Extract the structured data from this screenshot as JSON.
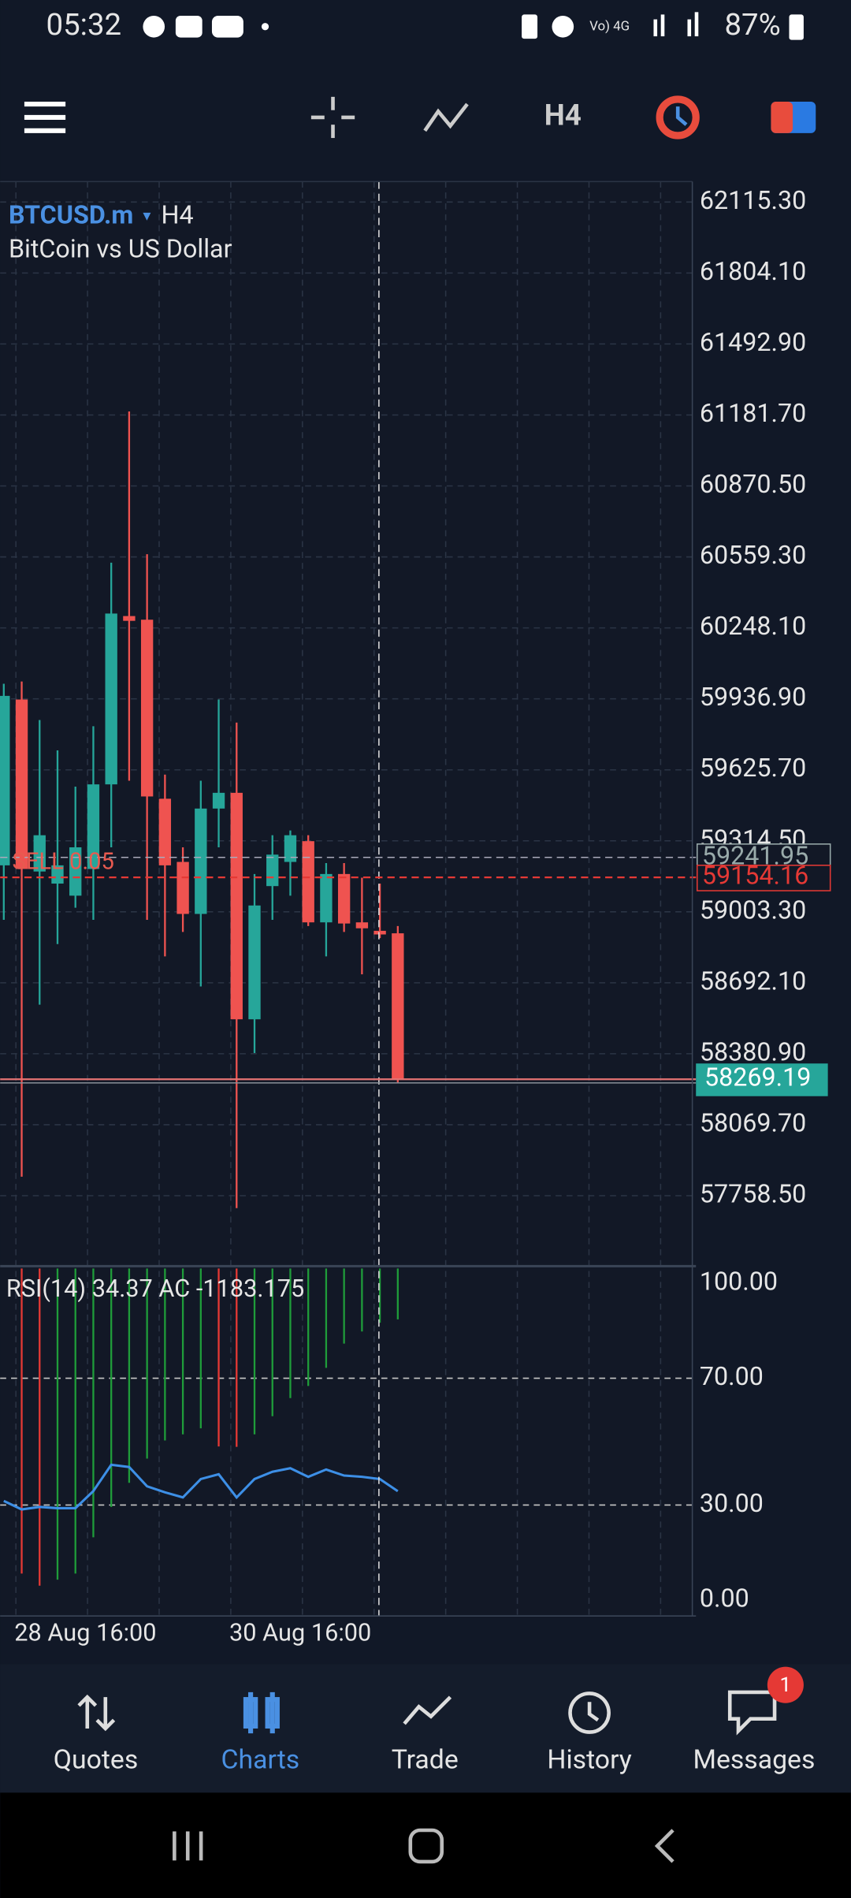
{
  "status_bar": {
    "time": "05:32",
    "battery": "87%"
  },
  "toolbar": {
    "timeframe": "H4"
  },
  "chart": {
    "type": "candlestick",
    "symbol": "BTCUSD.m",
    "timeframe": "H4",
    "description": "BitCoin vs US Dollar",
    "categories": [
      null,
      "28 Aug 16:00",
      null,
      null,
      null,
      null,
      null,
      null,
      null,
      null,
      null,
      null,
      null,
      "30 Aug 16:00",
      null,
      null,
      null,
      null,
      null,
      null,
      null,
      null,
      null
    ],
    "open": [
      59207,
      59934,
      59180,
      59127,
      59074,
      59191,
      59562,
      60300,
      60284,
      59499,
      59222,
      58994,
      59456,
      59525,
      58532,
      59116,
      59222,
      59313,
      58957,
      59169,
      58957,
      58920,
      58909
    ],
    "high": [
      60003,
      60013,
      59844,
      59711,
      59552,
      59817,
      60534,
      61197,
      60571,
      59605,
      59286,
      59578,
      59934,
      59833,
      59169,
      59339,
      59360,
      59339,
      59217,
      59217,
      59153,
      59127,
      58941
    ],
    "low": [
      58968,
      57842,
      58596,
      58862,
      59021,
      58968,
      59286,
      59578,
      58968,
      58808,
      58915,
      58676,
      59286,
      57704,
      58384,
      58968,
      59074,
      58941,
      58808,
      58915,
      58729,
      58888,
      58251
    ],
    "close": [
      59950,
      59191,
      59339,
      59207,
      59286,
      59562,
      60311,
      60279,
      59509,
      59207,
      58994,
      59456,
      59525,
      58532,
      59031,
      59254,
      59339,
      58957,
      59169,
      58952,
      58931,
      58904,
      58269
    ],
    "up_color": "#26a69a",
    "down_color": "#ef5350",
    "ylim": [
      57455,
      62205
    ],
    "yticks": [
      {
        "value": 62115.3,
        "label": "62115.30"
      },
      {
        "value": 61804.1,
        "label": "61804.10"
      },
      {
        "value": 61492.9,
        "label": "61492.90"
      },
      {
        "value": 61181.7,
        "label": "61181.70"
      },
      {
        "value": 60870.5,
        "label": "60870.50"
      },
      {
        "value": 60559.3,
        "label": "60559.30"
      },
      {
        "value": 60248.1,
        "label": "60248.10"
      },
      {
        "value": 59936.9,
        "label": "59936.90"
      },
      {
        "value": 59625.7,
        "label": "59625.70"
      },
      {
        "value": 59314.5,
        "label": "59314.50"
      },
      {
        "value": 59003.3,
        "label": "59003.30"
      },
      {
        "value": 58692.1,
        "label": "58692.10"
      },
      {
        "value": 58380.9,
        "label": "58380.90"
      },
      {
        "value": 58069.7,
        "label": "58069.70"
      },
      {
        "value": 57758.5,
        "label": "57758.50"
      }
    ],
    "ask": 59241.95,
    "order_price": 59154.16,
    "order_label": "SELL 0.05",
    "bid": 58269.19
  },
  "rsi": {
    "label": "RSI(14) 34.37 AC -1183.175",
    "rsi_values": [
      31.3,
      28.6,
      29.4,
      29.0,
      29.0,
      34.4,
      42.7,
      42.0,
      35.9,
      34.0,
      32.4,
      38.2,
      39.7,
      32.4,
      38.2,
      40.5,
      41.6,
      38.9,
      41.2,
      39.3,
      38.9,
      38.2,
      34.37
    ],
    "ac_values": [
      null,
      -7099,
      -7381,
      -7240,
      -7099,
      -6254,
      -5549,
      -4986,
      -4423,
      -4000,
      -3859,
      -3718,
      -4141,
      -4150,
      -3859,
      -3437,
      -3014,
      -2732,
      -2310,
      -1747,
      -1465,
      -1260,
      -1183.175
    ],
    "ylim": [
      -5,
      104.6
    ],
    "aclim": [
      -8085,
      0
    ],
    "yticks": [
      {
        "value": 100,
        "label": "100.00"
      },
      {
        "value": 70,
        "label": "70.00"
      },
      {
        "value": 30,
        "label": "30.00"
      },
      {
        "value": 0,
        "label": "0.00"
      }
    ]
  },
  "nav": {
    "items": [
      "Quotes",
      "Charts",
      "Trade",
      "History",
      "Messages"
    ],
    "badge": "1"
  }
}
